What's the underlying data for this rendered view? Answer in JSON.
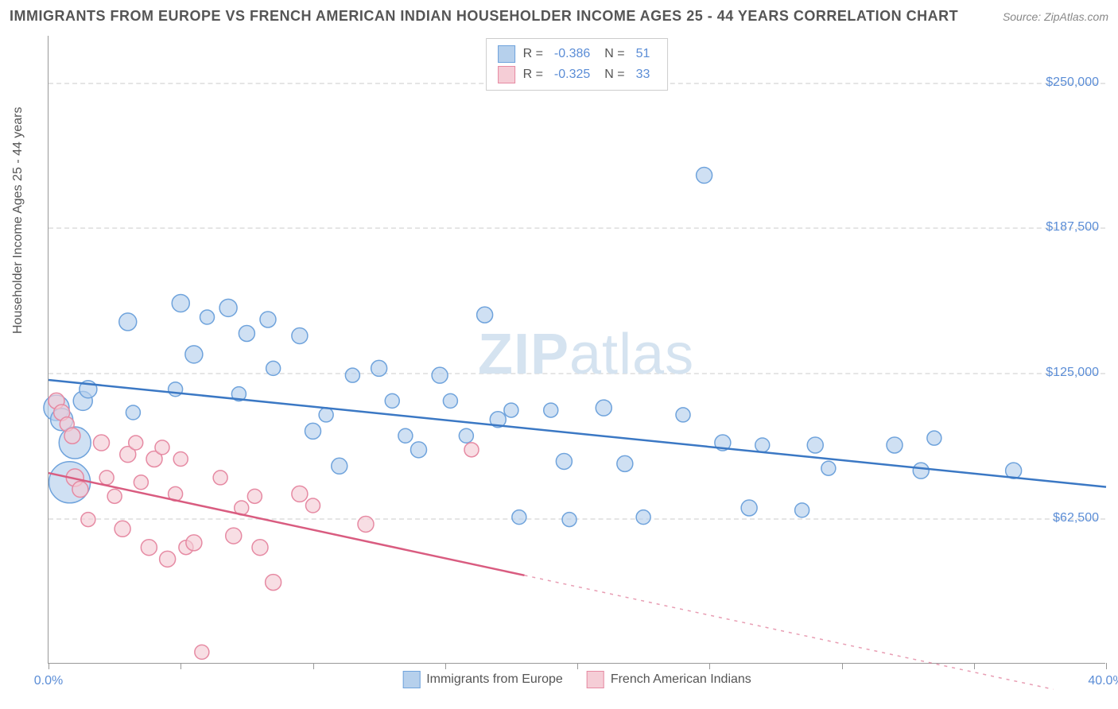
{
  "header": {
    "title": "IMMIGRANTS FROM EUROPE VS FRENCH AMERICAN INDIAN HOUSEHOLDER INCOME AGES 25 - 44 YEARS CORRELATION CHART",
    "source_prefix": "Source: ",
    "source_name": "ZipAtlas.com"
  },
  "watermark": {
    "text_bold": "ZIP",
    "text_light": "atlas",
    "color": "#d5e3f0",
    "fontsize": 72
  },
  "axes": {
    "y_label": "Householder Income Ages 25 - 44 years",
    "x_min": 0.0,
    "x_max": 40.0,
    "y_min": 0,
    "y_max": 270000,
    "x_ticks": [
      0,
      5,
      10,
      15,
      20,
      25,
      30,
      35,
      40
    ],
    "x_tick_labels": {
      "0": "0.0%",
      "40": "40.0%"
    },
    "y_gridlines": [
      62500,
      125000,
      187500,
      250000
    ],
    "y_tick_labels": [
      "$62,500",
      "$125,000",
      "$187,500",
      "$250,000"
    ],
    "grid_color": "#e5e5e5",
    "axis_color": "#999999",
    "tick_label_color": "#5b8dd6",
    "axis_label_color": "#555555",
    "label_fontsize": 16
  },
  "series": [
    {
      "name": "Immigrants from Europe",
      "color_fill": "#b6d0ec",
      "color_stroke": "#6fa3dc",
      "line_color": "#3b78c4",
      "line_width": 2.5,
      "R": "-0.386",
      "N": "51",
      "regression": {
        "x1": 0,
        "y1": 122000,
        "x2": 40,
        "y2": 76000,
        "dashed_from_x": 40
      },
      "points": [
        {
          "x": 0.3,
          "y": 110000,
          "r": 16
        },
        {
          "x": 0.5,
          "y": 105000,
          "r": 14
        },
        {
          "x": 0.8,
          "y": 78000,
          "r": 26
        },
        {
          "x": 1.0,
          "y": 95000,
          "r": 20
        },
        {
          "x": 1.3,
          "y": 113000,
          "r": 12
        },
        {
          "x": 1.5,
          "y": 118000,
          "r": 11
        },
        {
          "x": 3.0,
          "y": 147000,
          "r": 11
        },
        {
          "x": 3.2,
          "y": 108000,
          "r": 9
        },
        {
          "x": 4.8,
          "y": 118000,
          "r": 9
        },
        {
          "x": 5.0,
          "y": 155000,
          "r": 11
        },
        {
          "x": 5.5,
          "y": 133000,
          "r": 11
        },
        {
          "x": 6.0,
          "y": 149000,
          "r": 9
        },
        {
          "x": 6.8,
          "y": 153000,
          "r": 11
        },
        {
          "x": 7.2,
          "y": 116000,
          "r": 9
        },
        {
          "x": 7.5,
          "y": 142000,
          "r": 10
        },
        {
          "x": 8.3,
          "y": 148000,
          "r": 10
        },
        {
          "x": 8.5,
          "y": 127000,
          "r": 9
        },
        {
          "x": 9.5,
          "y": 141000,
          "r": 10
        },
        {
          "x": 10.0,
          "y": 100000,
          "r": 10
        },
        {
          "x": 10.5,
          "y": 107000,
          "r": 9
        },
        {
          "x": 11.0,
          "y": 85000,
          "r": 10
        },
        {
          "x": 11.5,
          "y": 124000,
          "r": 9
        },
        {
          "x": 12.5,
          "y": 127000,
          "r": 10
        },
        {
          "x": 13.0,
          "y": 113000,
          "r": 9
        },
        {
          "x": 13.5,
          "y": 98000,
          "r": 9
        },
        {
          "x": 14.0,
          "y": 92000,
          "r": 10
        },
        {
          "x": 14.8,
          "y": 124000,
          "r": 10
        },
        {
          "x": 15.2,
          "y": 113000,
          "r": 9
        },
        {
          "x": 15.8,
          "y": 98000,
          "r": 9
        },
        {
          "x": 16.5,
          "y": 150000,
          "r": 10
        },
        {
          "x": 17.0,
          "y": 105000,
          "r": 10
        },
        {
          "x": 17.5,
          "y": 109000,
          "r": 9
        },
        {
          "x": 17.8,
          "y": 63000,
          "r": 9
        },
        {
          "x": 19.0,
          "y": 109000,
          "r": 9
        },
        {
          "x": 19.5,
          "y": 87000,
          "r": 10
        },
        {
          "x": 19.7,
          "y": 62000,
          "r": 9
        },
        {
          "x": 21.0,
          "y": 110000,
          "r": 10
        },
        {
          "x": 21.8,
          "y": 86000,
          "r": 10
        },
        {
          "x": 22.5,
          "y": 63000,
          "r": 9
        },
        {
          "x": 24.0,
          "y": 107000,
          "r": 9
        },
        {
          "x": 24.8,
          "y": 210000,
          "r": 10
        },
        {
          "x": 25.5,
          "y": 95000,
          "r": 10
        },
        {
          "x": 26.5,
          "y": 67000,
          "r": 10
        },
        {
          "x": 27.0,
          "y": 94000,
          "r": 9
        },
        {
          "x": 28.5,
          "y": 66000,
          "r": 9
        },
        {
          "x": 29.0,
          "y": 94000,
          "r": 10
        },
        {
          "x": 29.5,
          "y": 84000,
          "r": 9
        },
        {
          "x": 32.0,
          "y": 94000,
          "r": 10
        },
        {
          "x": 33.0,
          "y": 83000,
          "r": 10
        },
        {
          "x": 33.5,
          "y": 97000,
          "r": 9
        },
        {
          "x": 36.5,
          "y": 83000,
          "r": 10
        }
      ]
    },
    {
      "name": "French American Indians",
      "color_fill": "#f5cdd6",
      "color_stroke": "#e68aa3",
      "line_color": "#d95c80",
      "line_width": 2.5,
      "R": "-0.325",
      "N": "33",
      "regression": {
        "x1": 0,
        "y1": 82000,
        "x2": 18,
        "y2": 38000,
        "dashed_from_x": 18,
        "x3": 38,
        "y3": -11000
      },
      "points": [
        {
          "x": 0.3,
          "y": 113000,
          "r": 10
        },
        {
          "x": 0.5,
          "y": 108000,
          "r": 10
        },
        {
          "x": 0.7,
          "y": 103000,
          "r": 9
        },
        {
          "x": 0.9,
          "y": 98000,
          "r": 10
        },
        {
          "x": 1.0,
          "y": 80000,
          "r": 11
        },
        {
          "x": 1.2,
          "y": 75000,
          "r": 10
        },
        {
          "x": 1.5,
          "y": 62000,
          "r": 9
        },
        {
          "x": 2.0,
          "y": 95000,
          "r": 10
        },
        {
          "x": 2.2,
          "y": 80000,
          "r": 9
        },
        {
          "x": 2.5,
          "y": 72000,
          "r": 9
        },
        {
          "x": 2.8,
          "y": 58000,
          "r": 10
        },
        {
          "x": 3.0,
          "y": 90000,
          "r": 10
        },
        {
          "x": 3.3,
          "y": 95000,
          "r": 9
        },
        {
          "x": 3.5,
          "y": 78000,
          "r": 9
        },
        {
          "x": 3.8,
          "y": 50000,
          "r": 10
        },
        {
          "x": 4.0,
          "y": 88000,
          "r": 10
        },
        {
          "x": 4.3,
          "y": 93000,
          "r": 9
        },
        {
          "x": 4.5,
          "y": 45000,
          "r": 10
        },
        {
          "x": 4.8,
          "y": 73000,
          "r": 9
        },
        {
          "x": 5.0,
          "y": 88000,
          "r": 9
        },
        {
          "x": 5.2,
          "y": 50000,
          "r": 9
        },
        {
          "x": 5.5,
          "y": 52000,
          "r": 10
        },
        {
          "x": 5.8,
          "y": 5000,
          "r": 9
        },
        {
          "x": 6.5,
          "y": 80000,
          "r": 9
        },
        {
          "x": 7.0,
          "y": 55000,
          "r": 10
        },
        {
          "x": 7.3,
          "y": 67000,
          "r": 9
        },
        {
          "x": 7.8,
          "y": 72000,
          "r": 9
        },
        {
          "x": 8.0,
          "y": 50000,
          "r": 10
        },
        {
          "x": 8.5,
          "y": 35000,
          "r": 10
        },
        {
          "x": 9.5,
          "y": 73000,
          "r": 10
        },
        {
          "x": 10.0,
          "y": 68000,
          "r": 9
        },
        {
          "x": 12.0,
          "y": 60000,
          "r": 10
        },
        {
          "x": 16.0,
          "y": 92000,
          "r": 9
        }
      ]
    }
  ],
  "legend_top": {
    "R_label": "R =",
    "N_label": "N ="
  },
  "legend_bottom_labels": [
    "Immigrants from Europe",
    "French American Indians"
  ]
}
